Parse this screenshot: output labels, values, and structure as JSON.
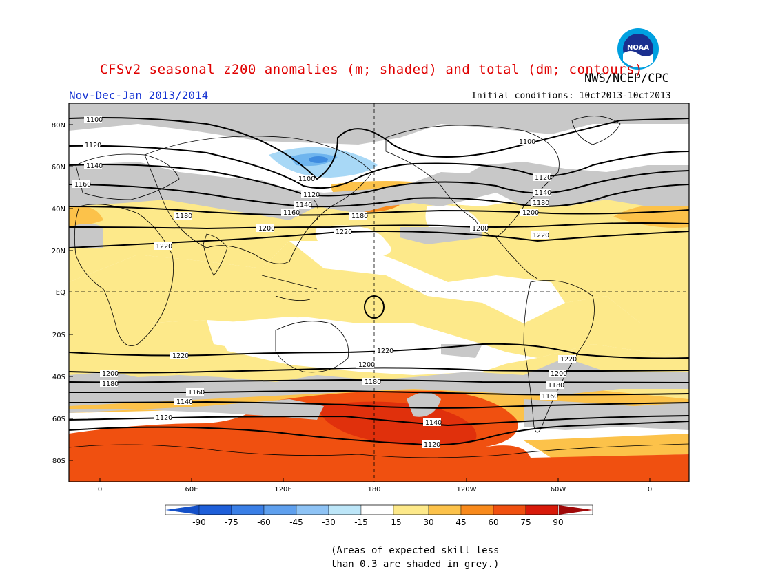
{
  "header": {
    "title": "CFSv2 seasonal z200 anomalies (m; shaded) and total (dm; contours)",
    "agency": "NWS/NCEP/CPC",
    "period": "Nov-Dec-Jan 2013/2014",
    "initial_conditions": "Initial conditions: 10ct2013-10ct2013",
    "logo_text": "NOAA"
  },
  "map": {
    "lat_labels": [
      "80N",
      "60N",
      "40N",
      "20N",
      "EQ",
      "20S",
      "40S",
      "60S",
      "80S"
    ],
    "lon_labels": [
      "0",
      "60E",
      "120E",
      "180",
      "120W",
      "60W",
      "0"
    ],
    "contours": [
      {
        "label": "1100"
      },
      {
        "label": "1120"
      },
      {
        "label": "1140"
      },
      {
        "label": "1160"
      },
      {
        "label": "1180"
      },
      {
        "label": "1200"
      },
      {
        "label": "1220"
      }
    ],
    "contour_labels": [
      "1100",
      "1120",
      "1140",
      "1160",
      "1180",
      "1200",
      "1220",
      "1100",
      "1120",
      "1140",
      "1160",
      "1180",
      "1200",
      "1220",
      "1100",
      "1120",
      "1140",
      "1180",
      "1200",
      "1220",
      "1220",
      "1200",
      "1180",
      "1160",
      "1140",
      "1120",
      "1220",
      "1200",
      "1180",
      "1140",
      "1220",
      "1200",
      "1180",
      "1160"
    ]
  },
  "colorbar": {
    "labels": [
      "-90",
      "-75",
      "-60",
      "-45",
      "-30",
      "-15",
      "15",
      "30",
      "45",
      "60",
      "75",
      "90"
    ],
    "colors": [
      "#1e5fd9",
      "#3a7fe6",
      "#5fa0ee",
      "#8ec3f5",
      "#bde6f8",
      "#ffffff",
      "#fde98a",
      "#fcc24a",
      "#f88a1c",
      "#f05010",
      "#d81a0a"
    ],
    "low_end_color": "#1450c8",
    "high_end_color": "#a00808",
    "skill_mask_color": "#c8c8c8"
  },
  "footer": {
    "note_line1": "(Areas of expected skill less",
    "note_line2": "than 0.3 are shaded in grey.)"
  }
}
